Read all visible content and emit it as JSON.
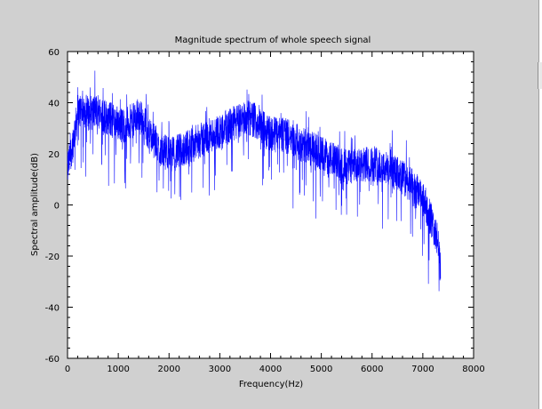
{
  "chart_data": {
    "type": "line",
    "title": "Magnitude spectrum of whole speech signal",
    "xlabel": "Frequency(Hz)",
    "ylabel": "Spectral amplitude(dB)",
    "xlim": [
      0,
      8000
    ],
    "ylim": [
      -60,
      60
    ],
    "xticks": [
      "0",
      "1000",
      "2000",
      "3000",
      "4000",
      "5000",
      "6000",
      "7000",
      "8000"
    ],
    "yticks": [
      "-60",
      "-40",
      "-20",
      "0",
      "20",
      "40",
      "60"
    ],
    "grid": false,
    "legend": "none",
    "series_color": "#0000ff",
    "series": [
      {
        "x": [
          0,
          100,
          200,
          300,
          400,
          500,
          600,
          700,
          800,
          900,
          1000,
          1100,
          1200,
          1300,
          1400,
          1500,
          1600,
          1700,
          1800,
          1900,
          2000,
          2100,
          2200,
          2300,
          2400,
          2500,
          2600,
          2700,
          2800,
          2900,
          3000,
          3100,
          3200,
          3300,
          3400,
          3500,
          3600,
          3700,
          3800,
          3900,
          4000,
          4100,
          4200,
          4300,
          4400,
          4500,
          4600,
          4700,
          4800,
          4900,
          5000,
          5100,
          5200,
          5300,
          5400,
          5500,
          5600,
          5700,
          5800,
          5900,
          6000,
          6100,
          6200,
          6300,
          6400,
          6500,
          6600,
          6700,
          6800,
          6900,
          7000,
          7100,
          7200,
          7300,
          7350
        ],
        "values": [
          14,
          24,
          36,
          38,
          36,
          36,
          37,
          35,
          34,
          33,
          32,
          31,
          32,
          33,
          35,
          33,
          28,
          25,
          22,
          21,
          20,
          20,
          21,
          22,
          23,
          24,
          25,
          26,
          27,
          28,
          29,
          30,
          31,
          32,
          33,
          34,
          34,
          33,
          31,
          29,
          28,
          28,
          28,
          27,
          26,
          25,
          24,
          23,
          22,
          21,
          20,
          19,
          18,
          17,
          16,
          15,
          15,
          15,
          15,
          16,
          16,
          16,
          15,
          14,
          13,
          12,
          11,
          9,
          7,
          5,
          2,
          -2,
          -8,
          -15,
          -25
        ]
      }
    ]
  }
}
